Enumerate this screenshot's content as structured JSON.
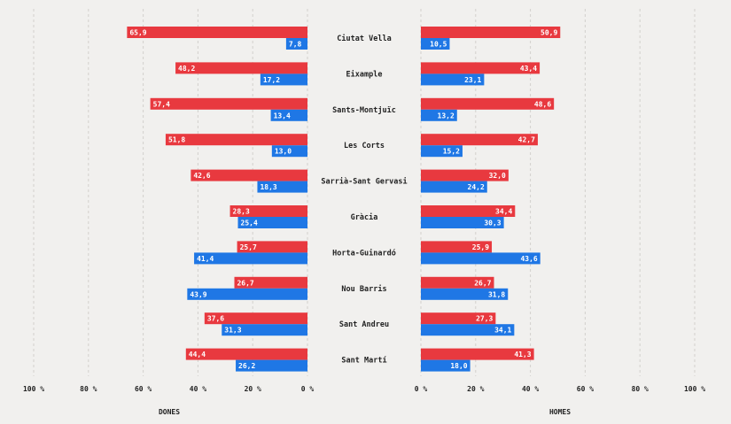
{
  "chart_data": {
    "type": "bar",
    "orientation": "horizontal-butterfly",
    "categories": [
      "Ciutat Vella",
      "Eixample",
      "Sants-Montjuïc",
      "Les Corts",
      "Sarrià-Sant Gervasi",
      "Gràcia",
      "Horta-Guinardó",
      "Nou Barris",
      "Sant Andreu",
      "Sant Martí"
    ],
    "panels": [
      {
        "side": "left",
        "xlabel": "DONES",
        "series": [
          {
            "color": "#e8393f",
            "values": [
              65.9,
              48.2,
              57.4,
              51.8,
              42.6,
              28.3,
              25.7,
              26.7,
              37.6,
              44.4
            ],
            "labels": [
              "65,9",
              "48,2",
              "57,4",
              "51,8",
              "42,6",
              "28,3",
              "25,7",
              "26,7",
              "37,6",
              "44,4"
            ]
          },
          {
            "color": "#1f77e5",
            "values": [
              7.8,
              17.2,
              13.4,
              13.0,
              18.3,
              25.4,
              41.4,
              43.9,
              31.3,
              26.2
            ],
            "labels": [
              "7,8",
              "17,2",
              "13,4",
              "13,0",
              "18,3",
              "25,4",
              "41,4",
              "43,9",
              "31,3",
              "26,2"
            ]
          }
        ]
      },
      {
        "side": "right",
        "xlabel": "HOMES",
        "series": [
          {
            "color": "#e8393f",
            "values": [
              50.9,
              43.4,
              48.6,
              42.7,
              32.0,
              34.4,
              25.9,
              26.7,
              27.3,
              41.3
            ],
            "labels": [
              "50,9",
              "43,4",
              "48,6",
              "42,7",
              "32,0",
              "34,4",
              "25,9",
              "26,7",
              "27,3",
              "41,3"
            ]
          },
          {
            "color": "#1f77e5",
            "values": [
              10.5,
              23.1,
              13.2,
              15.2,
              24.2,
              30.3,
              43.6,
              31.8,
              34.1,
              18.0
            ],
            "labels": [
              "10,5",
              "23,1",
              "13,2",
              "15,2",
              "24,2",
              "30,3",
              "43,6",
              "31,8",
              "34,1",
              "18,0"
            ]
          }
        ]
      }
    ],
    "xlim": [
      0,
      100
    ],
    "xticks": [
      0,
      20,
      40,
      60,
      80,
      100
    ],
    "left_tick_labels": [
      "100 %",
      "80 %",
      "60 %",
      "40 %",
      "20 %",
      "0 %"
    ],
    "right_tick_labels": [
      "0 %",
      "20 %",
      "40 %",
      "60 %",
      "80 %",
      "100 %"
    ],
    "grid": true
  }
}
